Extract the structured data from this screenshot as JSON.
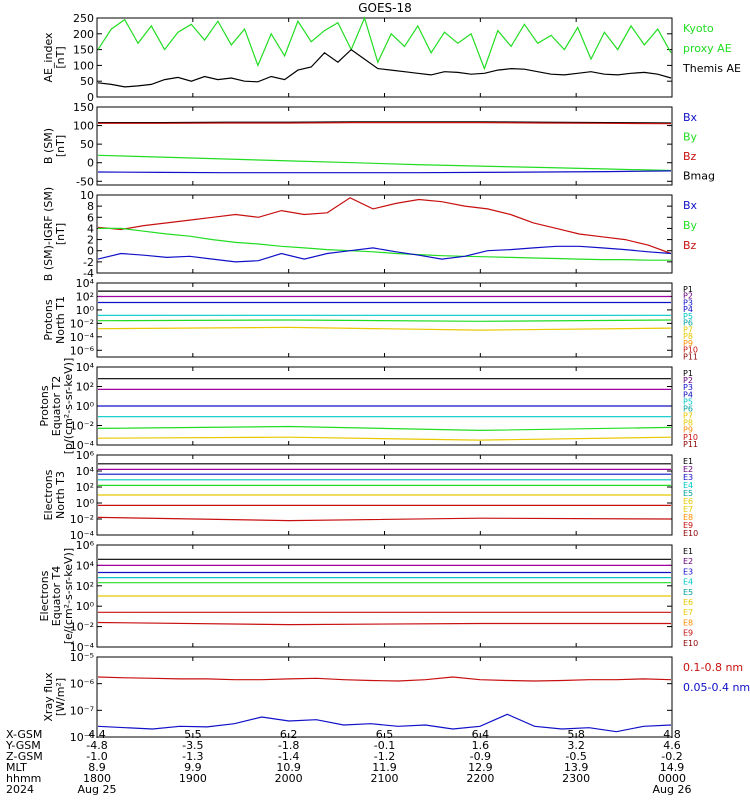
{
  "title": "GOES-18",
  "colors": {
    "black": "#000000",
    "green": "#22dd22",
    "lime": "#33ee33",
    "blue": "#1010c8",
    "red": "#c81010",
    "darkred": "#8b0000",
    "cyan": "#00c8c8",
    "yellow": "#e8c800",
    "orange": "#ff8c00",
    "magenta": "#a000a0",
    "navy": "#000080",
    "teal": "#00a0a0",
    "purple": "#6a0080",
    "lightgreen": "#66dd66"
  },
  "chart_data": [
    {
      "type": "line",
      "ylabel": [
        "AE_index",
        "[nT]"
      ],
      "ylim": [
        0,
        250
      ],
      "yticks": [
        0,
        50,
        100,
        150,
        200,
        250
      ],
      "ytick_labels": [
        "0",
        "50",
        "100",
        "150",
        "200",
        "250"
      ],
      "legend": [
        {
          "label": "Kyoto",
          "color": "#22dd22"
        },
        {
          "label": "proxy AE",
          "color": "#22dd22"
        },
        {
          "label": "Themis AE",
          "color": "#000000"
        }
      ],
      "series": [
        {
          "name": "Kyoto proxy AE",
          "color": "#22dd22",
          "values": [
            150,
            215,
            245,
            170,
            225,
            150,
            205,
            230,
            180,
            240,
            165,
            215,
            100,
            200,
            130,
            240,
            175,
            210,
            235,
            150,
            250,
            110,
            200,
            160,
            225,
            140,
            205,
            170,
            200,
            90,
            210,
            160,
            230,
            170,
            195,
            150,
            220,
            120,
            205,
            150,
            225,
            165,
            215,
            140
          ]
        },
        {
          "name": "Themis AE",
          "color": "#000000",
          "values": [
            45,
            40,
            32,
            35,
            40,
            55,
            62,
            50,
            65,
            55,
            60,
            50,
            48,
            65,
            55,
            85,
            95,
            140,
            110,
            150,
            120,
            90,
            85,
            80,
            75,
            70,
            80,
            78,
            72,
            75,
            85,
            90,
            88,
            80,
            72,
            70,
            75,
            80,
            72,
            70,
            75,
            78,
            72,
            60
          ]
        }
      ]
    },
    {
      "type": "line",
      "ylabel": [
        "B (SM)",
        "[nT]"
      ],
      "ylim": [
        -60,
        150
      ],
      "yticks": [
        -50,
        0,
        50,
        100,
        150
      ],
      "ytick_labels": [
        "-50",
        "0",
        "50",
        "100",
        "150"
      ],
      "legend": [
        {
          "label": "Bx",
          "color": "#1010c8"
        },
        {
          "label": "By",
          "color": "#22dd22"
        },
        {
          "label": "Bz",
          "color": "#c81010"
        },
        {
          "label": "Bmag",
          "color": "#000000"
        }
      ],
      "series": [
        {
          "name": "Bmag",
          "color": "#000000",
          "values": [
            108,
            108,
            109,
            109,
            110,
            110,
            110,
            109,
            108,
            107
          ]
        },
        {
          "name": "Bz",
          "color": "#c81010",
          "values": [
            106,
            106,
            107,
            107,
            108,
            108,
            108,
            107,
            106,
            105
          ]
        },
        {
          "name": "By",
          "color": "#22dd22",
          "values": [
            20,
            15,
            10,
            5,
            0,
            -5,
            -9,
            -13,
            -17,
            -21
          ]
        },
        {
          "name": "Bx",
          "color": "#1010c8",
          "values": [
            -25,
            -26,
            -27,
            -27,
            -27,
            -27,
            -26,
            -25,
            -24,
            -22
          ]
        }
      ]
    },
    {
      "type": "line",
      "ylabel": [
        "B (SM)-IGRF (SM)",
        "[nT]"
      ],
      "ylim": [
        -4,
        10
      ],
      "yticks": [
        -4,
        -2,
        0,
        2,
        4,
        6,
        8,
        10
      ],
      "ytick_labels": [
        "-4",
        "-2",
        "0",
        "2",
        "4",
        "6",
        "8",
        "10"
      ],
      "legend": [
        {
          "label": "Bx",
          "color": "#1010c8"
        },
        {
          "label": "By",
          "color": "#22dd22"
        },
        {
          "label": "Bz",
          "color": "#c81010"
        }
      ],
      "series": [
        {
          "name": "Bz",
          "color": "#c81010",
          "values": [
            4.2,
            3.8,
            4.5,
            5.0,
            5.5,
            6.0,
            6.5,
            6.0,
            7.2,
            6.5,
            6.8,
            9.5,
            7.5,
            8.5,
            9.2,
            8.8,
            8.0,
            7.5,
            6.5,
            5.0,
            4.0,
            3.0,
            2.5,
            2.0,
            1.0,
            -0.5
          ]
        },
        {
          "name": "By",
          "color": "#22dd22",
          "values": [
            4.0,
            4.0,
            3.5,
            3.0,
            2.6,
            2.0,
            1.5,
            1.2,
            0.8,
            0.5,
            0.2,
            0.0,
            -0.2,
            -0.5,
            -0.7,
            -0.9,
            -1.0,
            -1.1,
            -1.2,
            -1.3,
            -1.4,
            -1.5,
            -1.6,
            -1.6,
            -1.7,
            -1.7
          ]
        },
        {
          "name": "Bx",
          "color": "#1010c8",
          "values": [
            -1.5,
            -0.5,
            -0.8,
            -1.2,
            -1.0,
            -1.5,
            -2.0,
            -1.8,
            -0.5,
            -1.5,
            -0.5,
            0.0,
            0.5,
            -0.2,
            -0.8,
            -1.5,
            -1.0,
            0.0,
            0.2,
            0.5,
            0.8,
            0.8,
            0.5,
            0.2,
            -0.2,
            -0.5
          ]
        }
      ]
    },
    {
      "type": "line",
      "ylabel": [
        "Protons",
        "North T1"
      ],
      "ylog": true,
      "ylim": [
        -7,
        4
      ],
      "yticks": [
        4,
        2,
        0,
        -2,
        -4,
        -6
      ],
      "ytick_labels": [
        "10⁴",
        "10²",
        "10⁰",
        "10⁻²",
        "10⁻⁴",
        "10⁻⁶"
      ],
      "legend": [
        {
          "label": "P1",
          "color": "#000000"
        },
        {
          "label": "P2",
          "color": "#6a0080"
        },
        {
          "label": "P3",
          "color": "#1010c8"
        },
        {
          "label": "P4",
          "color": "#1010c8"
        },
        {
          "label": "P5",
          "color": "#00c8c8"
        },
        {
          "label": "P6",
          "color": "#00a0a0"
        },
        {
          "label": "P7",
          "color": "#e8c800"
        },
        {
          "label": "P8",
          "color": "#e8c800"
        },
        {
          "label": "P9",
          "color": "#ff8c00"
        },
        {
          "label": "P10",
          "color": "#c81010"
        },
        {
          "label": "P11",
          "color": "#8b0000"
        }
      ],
      "series": [
        {
          "name": "P1",
          "color": "#000000",
          "values": [
            2.8,
            2.8,
            2.8,
            2.8
          ]
        },
        {
          "name": "P2",
          "color": "#a000a0",
          "values": [
            2.0,
            2.0,
            2.0,
            2.0
          ]
        },
        {
          "name": "P3",
          "color": "#1010c8",
          "values": [
            1.1,
            1.1,
            1.1,
            1.1
          ]
        },
        {
          "name": "P4",
          "color": "#00c8c8",
          "values": [
            -0.8,
            -0.8,
            -0.8,
            -0.8
          ]
        },
        {
          "name": "P5",
          "color": "#22dd22",
          "values": [
            -1.6,
            -1.5,
            -1.7,
            -1.5
          ]
        },
        {
          "name": "P6",
          "color": "#e8c800",
          "values": [
            -2.8,
            -2.6,
            -3.0,
            -2.7
          ]
        }
      ]
    },
    {
      "type": "line",
      "ylabel": [
        "Protons",
        "Equator T2",
        "[p/(cm²-s-sr-keV)]"
      ],
      "ylog": true,
      "ylim": [
        -4,
        4
      ],
      "yticks": [
        4,
        2,
        0,
        -2,
        -4
      ],
      "ytick_labels": [
        "10⁴",
        "10²",
        "10⁰",
        "10⁻²",
        "10⁻⁴"
      ],
      "legend": [
        {
          "label": "P1",
          "color": "#000000"
        },
        {
          "label": "P2",
          "color": "#6a0080"
        },
        {
          "label": "P3",
          "color": "#1010c8"
        },
        {
          "label": "P4",
          "color": "#1010c8"
        },
        {
          "label": "P5",
          "color": "#00c8c8"
        },
        {
          "label": "P6",
          "color": "#00a0a0"
        },
        {
          "label": "P7",
          "color": "#e8c800"
        },
        {
          "label": "P8",
          "color": "#e8c800"
        },
        {
          "label": "P9",
          "color": "#ff8c00"
        },
        {
          "label": "P10",
          "color": "#c81010"
        },
        {
          "label": "P11",
          "color": "#8b0000"
        }
      ],
      "series": [
        {
          "name": "P1",
          "color": "#000000",
          "values": [
            2.8,
            2.8,
            2.8,
            2.8
          ]
        },
        {
          "name": "P2",
          "color": "#a000a0",
          "values": [
            1.7,
            1.7,
            1.7,
            1.7
          ]
        },
        {
          "name": "P3",
          "color": "#1010c8",
          "values": [
            0.0,
            0.0,
            0.0,
            0.0
          ]
        },
        {
          "name": "P4",
          "color": "#00c8c8",
          "values": [
            -1.1,
            -1.1,
            -1.1,
            -1.1
          ]
        },
        {
          "name": "P5",
          "color": "#22dd22",
          "values": [
            -2.3,
            -2.1,
            -2.5,
            -2.2
          ]
        },
        {
          "name": "P6",
          "color": "#e8c800",
          "values": [
            -3.3,
            -3.2,
            -3.5,
            -3.2
          ]
        }
      ]
    },
    {
      "type": "line",
      "ylabel": [
        "Electrons",
        "North T3"
      ],
      "ylog": true,
      "ylim": [
        -4,
        6
      ],
      "yticks": [
        6,
        4,
        2,
        0,
        -2,
        -4
      ],
      "ytick_labels": [
        "10⁶",
        "10⁴",
        "10²",
        "10⁰",
        "10⁻²",
        "10⁻⁴"
      ],
      "legend": [
        {
          "label": "E1",
          "color": "#000000"
        },
        {
          "label": "E2",
          "color": "#6a0080"
        },
        {
          "label": "E3",
          "color": "#1010c8"
        },
        {
          "label": "E4",
          "color": "#00c8c8"
        },
        {
          "label": "E5",
          "color": "#00a0a0"
        },
        {
          "label": "E6",
          "color": "#e8c800"
        },
        {
          "label": "E7",
          "color": "#e8c800"
        },
        {
          "label": "E8",
          "color": "#ff8c00"
        },
        {
          "label": "E9",
          "color": "#c81010"
        },
        {
          "label": "E10",
          "color": "#8b0000"
        }
      ],
      "series": [
        {
          "name": "E1",
          "color": "#000000",
          "values": [
            4.9,
            4.9,
            4.9,
            4.9
          ]
        },
        {
          "name": "E2",
          "color": "#a000a0",
          "values": [
            4.2,
            4.2,
            4.2,
            4.2
          ]
        },
        {
          "name": "E3",
          "color": "#1010c8",
          "values": [
            3.6,
            3.6,
            3.6,
            3.6
          ]
        },
        {
          "name": "E4",
          "color": "#00c8c8",
          "values": [
            2.9,
            2.9,
            2.9,
            2.9
          ]
        },
        {
          "name": "E5",
          "color": "#22dd22",
          "values": [
            2.2,
            2.2,
            2.2,
            2.2
          ]
        },
        {
          "name": "E6",
          "color": "#e8c800",
          "values": [
            1.0,
            1.0,
            1.0,
            1.0
          ]
        },
        {
          "name": "E7",
          "color": "#c81010",
          "values": [
            -0.3,
            -0.3,
            -0.3,
            -0.3
          ]
        },
        {
          "name": "E8",
          "color": "#c81010",
          "values": [
            -1.8,
            -2.2,
            -1.9,
            -2.0
          ]
        }
      ]
    },
    {
      "type": "line",
      "ylabel": [
        "Electrons",
        "Equator T4",
        "[e/(cm²-s-sr-keV)]"
      ],
      "ylog": true,
      "ylim": [
        -4,
        6
      ],
      "yticks": [
        6,
        4,
        2,
        0,
        -2,
        -4
      ],
      "ytick_labels": [
        "10⁶",
        "10⁴",
        "10²",
        "10⁰",
        "10⁻²",
        "10⁻⁴"
      ],
      "legend": [
        {
          "label": "E1",
          "color": "#000000"
        },
        {
          "label": "E2",
          "color": "#6a0080"
        },
        {
          "label": "E3",
          "color": "#1010c8"
        },
        {
          "label": "E4",
          "color": "#00c8c8"
        },
        {
          "label": "E5",
          "color": "#00a0a0"
        },
        {
          "label": "E6",
          "color": "#e8c800"
        },
        {
          "label": "E7",
          "color": "#e8c800"
        },
        {
          "label": "E8",
          "color": "#ff8c00"
        },
        {
          "label": "E9",
          "color": "#c81010"
        },
        {
          "label": "E10",
          "color": "#8b0000"
        }
      ],
      "series": [
        {
          "name": "E1",
          "color": "#000000",
          "values": [
            4.6,
            4.6,
            4.6,
            4.6
          ]
        },
        {
          "name": "E2",
          "color": "#a000a0",
          "values": [
            4.0,
            4.0,
            4.0,
            4.0
          ]
        },
        {
          "name": "E3",
          "color": "#1010c8",
          "values": [
            3.3,
            3.3,
            3.3,
            3.3
          ]
        },
        {
          "name": "E4",
          "color": "#00c8c8",
          "values": [
            2.8,
            2.8,
            2.8,
            2.8
          ]
        },
        {
          "name": "E5",
          "color": "#22dd22",
          "values": [
            2.3,
            2.3,
            2.3,
            2.3
          ]
        },
        {
          "name": "E6",
          "color": "#e8c800",
          "values": [
            1.0,
            1.0,
            1.0,
            1.0
          ]
        },
        {
          "name": "E7",
          "color": "#c81010",
          "values": [
            -0.6,
            -0.6,
            -0.6,
            -0.6
          ]
        },
        {
          "name": "E8",
          "color": "#c81010",
          "values": [
            -1.6,
            -1.8,
            -1.7,
            -1.7
          ]
        }
      ]
    },
    {
      "type": "line",
      "ylabel": [
        "Xray flux",
        "[W/m²]"
      ],
      "ylog": true,
      "ylim": [
        -8,
        -5
      ],
      "yticks": [
        -5,
        -6,
        -7,
        -8
      ],
      "ytick_labels": [
        "10⁻⁵",
        "10⁻⁶",
        "10⁻⁷",
        "10⁻⁸"
      ],
      "legend": [
        {
          "label": "0.1-0.8 nm",
          "color": "#c81010"
        },
        {
          "label": "0.05-0.4 nm",
          "color": "#1010c8"
        }
      ],
      "series": [
        {
          "name": "0.1-0.8 nm",
          "color": "#c81010",
          "values": [
            -5.75,
            -5.78,
            -5.8,
            -5.82,
            -5.82,
            -5.85,
            -5.85,
            -5.82,
            -5.8,
            -5.85,
            -5.88,
            -5.9,
            -5.85,
            -5.75,
            -5.85,
            -5.88,
            -5.9,
            -5.88,
            -5.85,
            -5.85,
            -5.82,
            -5.85
          ]
        },
        {
          "name": "0.05-0.4 nm",
          "color": "#1010c8",
          "values": [
            -7.6,
            -7.65,
            -7.7,
            -7.6,
            -7.62,
            -7.5,
            -7.25,
            -7.4,
            -7.35,
            -7.55,
            -7.5,
            -7.6,
            -7.55,
            -7.7,
            -7.6,
            -7.15,
            -7.6,
            -7.7,
            -7.65,
            -7.8,
            -7.6,
            -7.55
          ]
        }
      ]
    }
  ],
  "x_axis": {
    "row_labels": [
      "X-GSM",
      "Y-GSM",
      "Z-GSM",
      "MLT",
      "hhmm",
      "2024"
    ],
    "columns": [
      {
        "values": [
          "4.4",
          "-4.8",
          "-1.0",
          "8.9",
          "1800",
          "Aug 25"
        ]
      },
      {
        "values": [
          "5.5",
          "-3.5",
          "-1.3",
          "9.9",
          "1900",
          ""
        ]
      },
      {
        "values": [
          "6.2",
          "-1.8",
          "-1.4",
          "10.9",
          "2000",
          ""
        ]
      },
      {
        "values": [
          "6.5",
          "-0.1",
          "-1.2",
          "11.9",
          "2100",
          ""
        ]
      },
      {
        "values": [
          "6.4",
          "1.6",
          "-0.9",
          "12.9",
          "2200",
          ""
        ]
      },
      {
        "values": [
          "5.8",
          "3.2",
          "-0.5",
          "13.9",
          "2300",
          ""
        ]
      },
      {
        "values": [
          "4.8",
          "4.6",
          "-0.2",
          "14.9",
          "0000",
          "Aug 26"
        ]
      }
    ]
  }
}
